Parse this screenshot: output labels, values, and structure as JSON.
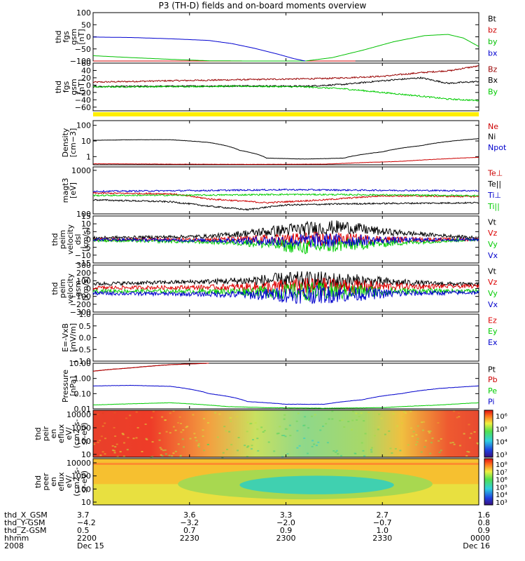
{
  "chart_data": {
    "type": "line",
    "title": "P3 (TH-D) fields and on-board moments overview",
    "time_ticks": [
      "2200",
      "2230",
      "2300",
      "2330",
      "0000"
    ],
    "panels": [
      {
        "id": "fgs",
        "ylabel": [
          "thd",
          "fgs",
          "gsm",
          "[nT]"
        ],
        "scale": "linear",
        "ylim": [
          -100,
          100
        ],
        "yticks": [
          "100",
          "50",
          "0",
          "−50",
          "−100"
        ],
        "yvalues": [
          100,
          50,
          0,
          -50,
          -100
        ],
        "series": [
          {
            "name": "Bt",
            "color": "#000000",
            "x": [
              0,
              0.3,
              0.55,
              0.68
            ],
            "y": [
              -100,
              -100,
              -100,
              -100
            ]
          },
          {
            "name": "bz",
            "color": "#d00000",
            "x": [
              0,
              0.3,
              0.55,
              0.68
            ],
            "y": [
              -100,
              -100,
              -100,
              -100
            ]
          },
          {
            "name": "by",
            "color": "#00c000",
            "x": [
              0,
              0.1,
              0.2,
              0.3,
              0.4,
              0.5,
              0.55,
              0.62,
              0.7,
              0.78,
              0.86,
              0.92,
              0.96,
              1.0
            ],
            "y": [
              -78,
              -86,
              -93,
              -99,
              -100,
              -100,
              -100,
              -86,
              -55,
              -20,
              5,
              10,
              -5,
              -40
            ]
          },
          {
            "name": "bx",
            "color": "#0000d0",
            "x": [
              0,
              0.1,
              0.2,
              0.3,
              0.36,
              0.42,
              0.48,
              0.52,
              0.55
            ],
            "y": [
              -1,
              -3,
              -8,
              -15,
              -28,
              -48,
              -72,
              -90,
              -100
            ]
          }
        ]
      },
      {
        "id": "fgs_zoom",
        "ylabel": [
          "thd",
          "fgs",
          "gsm",
          "[nT]"
        ],
        "scale": "linear",
        "ylim": [
          -70,
          60
        ],
        "yticks": [
          "60",
          "40",
          "20",
          "0",
          "−20",
          "−40",
          "−60"
        ],
        "yvalues": [
          60,
          40,
          20,
          0,
          -20,
          -40,
          -60
        ],
        "series": [
          {
            "name": "Bz",
            "color": "#990000",
            "x": [
              0,
              0.2,
              0.4,
              0.6,
              0.75,
              0.85,
              0.93,
              0.96,
              1.0
            ],
            "y": [
              8,
              12,
              15,
              18,
              24,
              34,
              40,
              46,
              52
            ]
          },
          {
            "name": "Bx",
            "color": "#000000",
            "x": [
              0,
              0.2,
              0.4,
              0.55,
              0.65,
              0.75,
              0.85,
              0.92,
              1.0
            ],
            "y": [
              -4,
              -3,
              -2,
              -3,
              2,
              12,
              20,
              5,
              10
            ]
          },
          {
            "name": "By",
            "color": "#00cc00",
            "x": [
              0,
              0.2,
              0.4,
              0.55,
              0.65,
              0.75,
              0.85,
              0.92,
              1.0
            ],
            "y": [
              -5,
              -4,
              -3,
              -5,
              -10,
              -20,
              -30,
              -38,
              -42
            ]
          }
        ]
      },
      {
        "id": "density",
        "ylabel": [
          "Density",
          "[cm−3]"
        ],
        "scale": "log",
        "ylim": [
          0.3,
          200
        ],
        "yticks": [
          "100",
          "10",
          "1"
        ],
        "yvalues": [
          100,
          10,
          1
        ],
        "series": [
          {
            "name": "Ne",
            "color": "#cc0000",
            "x": [
              0,
              0.2,
              0.4,
              0.6,
              0.8,
              1.0
            ],
            "y": [
              0.35,
              0.33,
              0.32,
              0.33,
              0.5,
              0.9
            ]
          },
          {
            "name": "Ni",
            "color": "#000000",
            "x": [
              0,
              0.1,
              0.2,
              0.3,
              0.38,
              0.45,
              0.55,
              0.65,
              0.75,
              0.85,
              1.0
            ],
            "y": [
              11,
              12,
              12,
              8,
              2.5,
              0.8,
              0.7,
              0.8,
              2,
              5,
              14
            ]
          },
          {
            "name": "Npot",
            "color": "#0000cc",
            "x": [],
            "y": []
          }
        ]
      },
      {
        "id": "temperature",
        "ylabel": [
          "magt3",
          "[eV]"
        ],
        "scale": "log",
        "ylim": [
          100,
          1200
        ],
        "yticks": [
          "1000",
          "100"
        ],
        "yvalues": [
          1000,
          100
        ],
        "series": [
          {
            "name": "Te⊥",
            "color": "#cc0000",
            "x": [
              0,
              0.2,
              0.3,
              0.45,
              0.6,
              0.75,
              1.0
            ],
            "y": [
              300,
              290,
              220,
              180,
              210,
              260,
              250
            ]
          },
          {
            "name": "Te||",
            "color": "#000000",
            "x": [
              0,
              0.2,
              0.3,
              0.4,
              0.5,
              0.65,
              0.8,
              1.0
            ],
            "y": [
              210,
              190,
              150,
              125,
              160,
              170,
              175,
              180
            ]
          },
          {
            "name": "Ti⊥",
            "color": "#0000cc",
            "x": [
              0,
              0.3,
              0.5,
              0.7,
              1.0
            ],
            "y": [
              330,
              345,
              360,
              350,
              340
            ]
          },
          {
            "name": "Ti||",
            "color": "#00cc00",
            "x": [
              0,
              0.3,
              0.5,
              0.7,
              1.0
            ],
            "y": [
              265,
              270,
              280,
              275,
              262
            ]
          }
        ]
      },
      {
        "id": "velocity_dsl",
        "ylabel": [
          "thd",
          "peim",
          "velocity",
          "dsl",
          "[km/s]"
        ],
        "scale": "linear",
        "ylim": [
          -15,
          15
        ],
        "yticks": [
          "15",
          "10",
          "5",
          "0",
          "−5",
          "−10",
          "−15"
        ],
        "yvalues": [
          15,
          10,
          5,
          0,
          -5,
          -10,
          -15
        ],
        "series": [
          {
            "name": "Vt",
            "color": "#000000",
            "x": [
              0,
              0.3,
              0.5,
              0.65,
              0.75,
              1.0
            ],
            "y": [
              1,
              2,
              6,
              8,
              5,
              1
            ]
          },
          {
            "name": "Vz",
            "color": "#dd0000",
            "x": [
              0,
              0.5,
              1.0
            ],
            "y": [
              0,
              0,
              0
            ]
          },
          {
            "name": "Vy",
            "color": "#00cc00",
            "x": [
              0,
              0.4,
              0.55,
              0.7,
              1.0
            ],
            "y": [
              -0.5,
              -2,
              -5,
              -3,
              0
            ]
          },
          {
            "name": "Vx",
            "color": "#0000cc",
            "x": [
              0,
              0.5,
              1.0
            ],
            "y": [
              0,
              -1,
              0
            ]
          }
        ]
      },
      {
        "id": "velocity_gsm",
        "ylabel": [
          "thd",
          "peim",
          "velocity",
          "gsm",
          "[km/s]"
        ],
        "scale": "linear",
        "ylim": [
          -300,
          300
        ],
        "yticks": [
          "300",
          "200",
          "100",
          "0",
          "−100",
          "−200",
          "−300"
        ],
        "yvalues": [
          300,
          200,
          100,
          0,
          -100,
          -200,
          -300
        ],
        "series": [
          {
            "name": "Vt",
            "color": "#000000",
            "x": [
              0,
              0.3,
              0.5,
              0.7,
              1.0
            ],
            "y": [
              60,
              90,
              110,
              90,
              50
            ]
          },
          {
            "name": "Vz",
            "color": "#dd0000",
            "x": [
              0,
              0.5,
              1.0
            ],
            "y": [
              10,
              20,
              30
            ]
          },
          {
            "name": "Vy",
            "color": "#00cc00",
            "x": [
              0,
              0.5,
              1.0
            ],
            "y": [
              -30,
              -40,
              -30
            ]
          },
          {
            "name": "Vx",
            "color": "#0000cc",
            "x": [
              0,
              0.5,
              1.0
            ],
            "y": [
              -60,
              -80,
              -50
            ]
          }
        ]
      },
      {
        "id": "efield",
        "ylabel": [
          "E=-VxB",
          "[mV/m]"
        ],
        "scale": "linear",
        "ylim": [
          -1,
          1
        ],
        "yticks": [
          "1.0",
          "0.5",
          "0.0",
          "−0.5",
          "−1.0"
        ],
        "yvalues": [
          1,
          0.5,
          0,
          -0.5,
          -1
        ],
        "series": [
          {
            "name": "Ez",
            "color": "#dd0000",
            "x": [],
            "y": []
          },
          {
            "name": "Ey",
            "color": "#00cc00",
            "x": [],
            "y": []
          },
          {
            "name": "Ex",
            "color": "#0000cc",
            "x": [],
            "y": []
          }
        ]
      },
      {
        "id": "pressure",
        "ylabel": [
          "Pressure",
          "[nPa]"
        ],
        "scale": "log",
        "ylim": [
          0.01,
          10
        ],
        "yticks": [
          "10.00",
          "1.00",
          "0.10",
          "0.01"
        ],
        "yvalues": [
          10,
          1,
          0.1,
          0.01
        ],
        "series": [
          {
            "name": "Pt",
            "color": "#000000",
            "x": [
              0,
              0.1,
              0.2,
              0.3
            ],
            "y": [
              3,
              5,
              8,
              10
            ]
          },
          {
            "name": "Pb",
            "color": "#cc0000",
            "x": [
              0,
              0.1,
              0.2,
              0.3
            ],
            "y": [
              3,
              5,
              8,
              10
            ]
          },
          {
            "name": "Pe",
            "color": "#00cc00",
            "x": [
              0,
              0.2,
              0.35,
              0.45,
              0.6,
              0.75,
              0.9,
              1.0
            ],
            "y": [
              0.018,
              0.025,
              0.014,
              0.012,
              0.011,
              0.012,
              0.018,
              0.025
            ]
          },
          {
            "name": "Pi",
            "color": "#0000cc",
            "x": [
              0,
              0.1,
              0.2,
              0.3,
              0.4,
              0.5,
              0.6,
              0.7,
              0.8,
              0.9,
              1.0
            ],
            "y": [
              0.32,
              0.35,
              0.3,
              0.1,
              0.03,
              0.02,
              0.02,
              0.04,
              0.1,
              0.22,
              0.32
            ]
          }
        ]
      }
    ],
    "spectrograms": [
      {
        "id": "peir",
        "ylabel": [
          "thd",
          "peir",
          "en",
          "eflux",
          "eV/",
          "(cm2-s-",
          "sr-eV)"
        ],
        "yticks": [
          "10000",
          "1000",
          "100",
          "10"
        ],
        "colorbar_ticks": [
          "10⁶",
          "10⁵",
          "10⁴",
          "10³"
        ]
      },
      {
        "id": "peer",
        "ylabel": [
          "thd",
          "peer",
          "en",
          "eflux",
          "eV/",
          "(cm2-s-",
          "sr-eV)"
        ],
        "yticks": [
          "10000",
          "1000",
          "100",
          "10"
        ],
        "colorbar_ticks": [
          "10⁸",
          "10⁷",
          "10⁶",
          "10⁵",
          "10⁴",
          "10³"
        ]
      }
    ],
    "ephemeris": {
      "labels": [
        "thd_X_GSM",
        "thd_Y-GSM",
        "thd_Z-GSM",
        "hhmm",
        "2008"
      ],
      "columns": [
        [
          "3.7",
          "−4.2",
          "0.5",
          "2200",
          "Dec 15"
        ],
        [
          "3.6",
          "−3.2",
          "0.7",
          "2230",
          ""
        ],
        [
          "3.3",
          "−2.0",
          "0.9",
          "2300",
          ""
        ],
        [
          "2.7",
          "−0.7",
          "1.0",
          "2330",
          ""
        ],
        [
          "1.6",
          "0.8",
          "0.9",
          "0000",
          "Dec 16"
        ]
      ]
    }
  }
}
